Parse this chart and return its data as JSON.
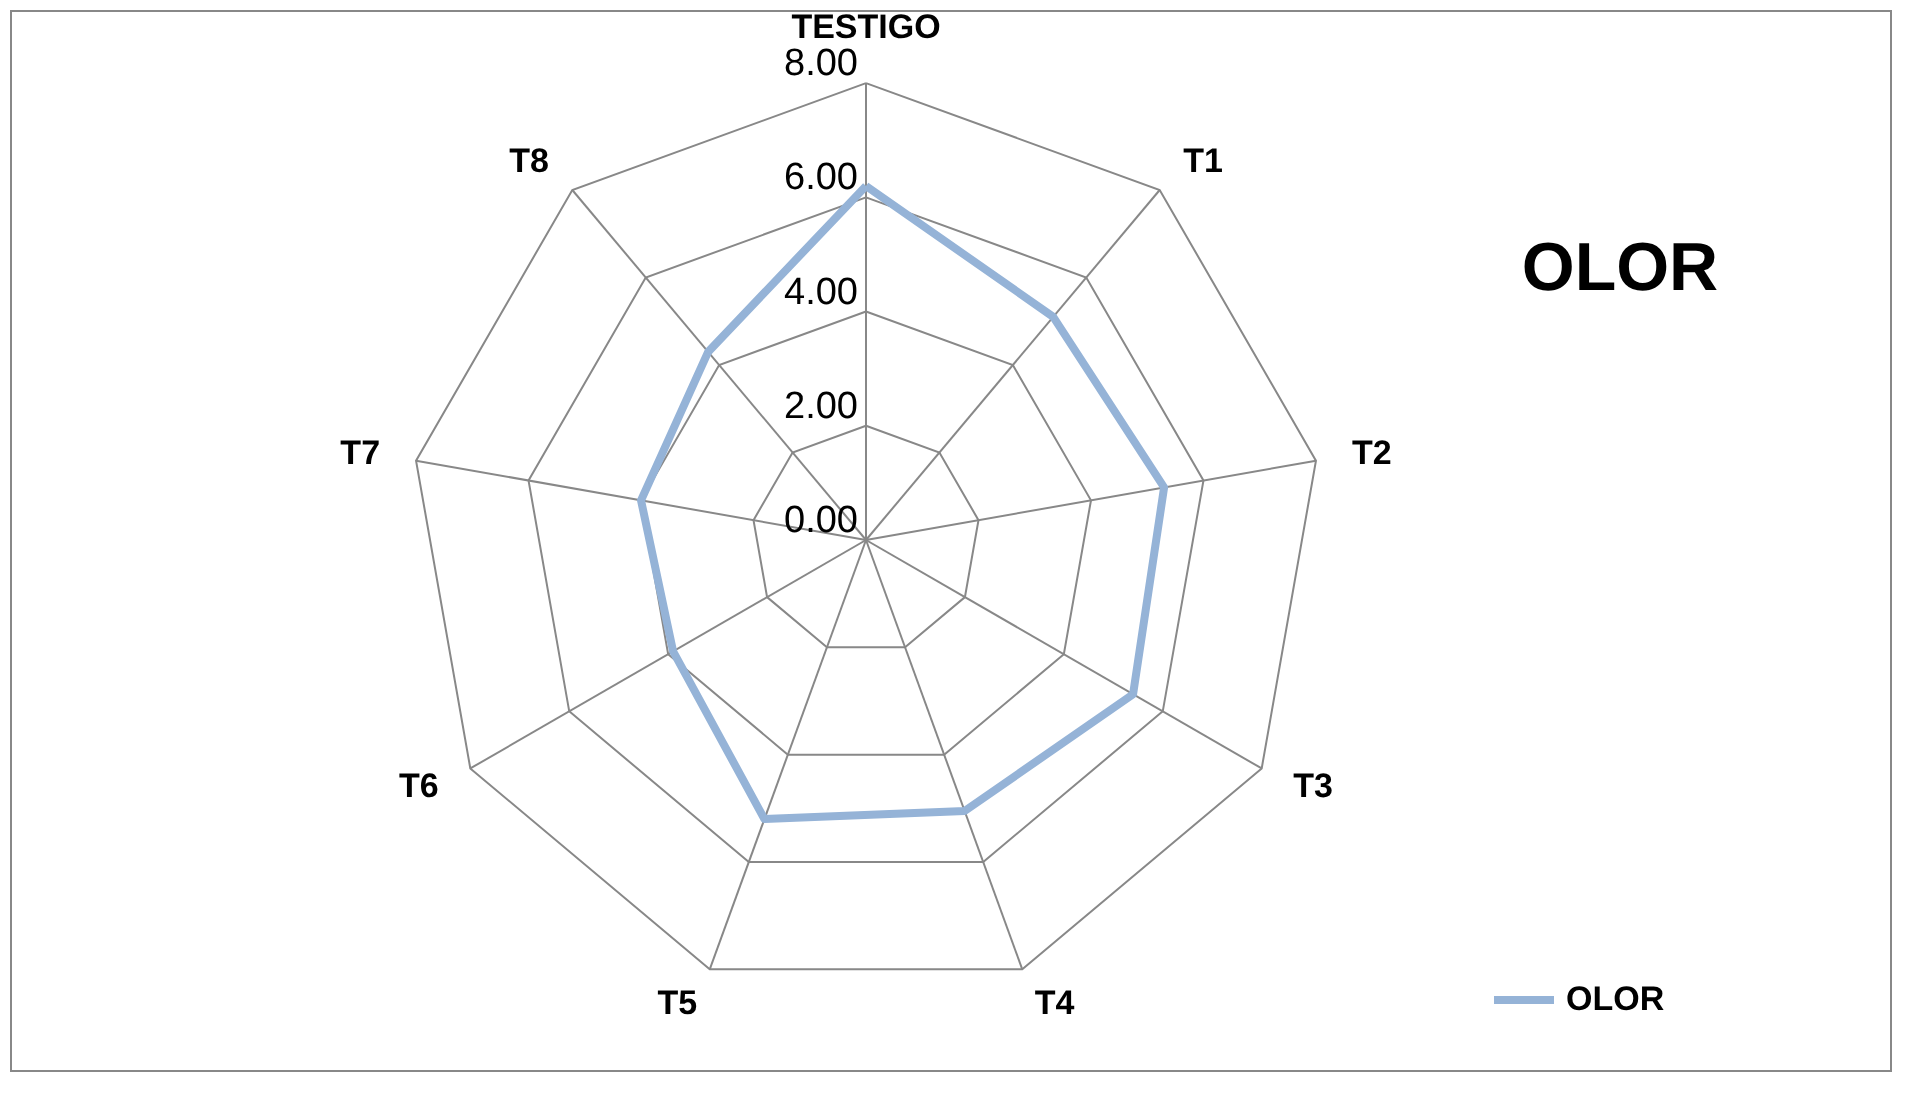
{
  "chart_data": {
    "type": "radar",
    "title": "OLOR",
    "categories": [
      "TESTIGO",
      "T1",
      "T2",
      "T3",
      "T4",
      "T5",
      "T6",
      "T7",
      "T8"
    ],
    "series": [
      {
        "name": "OLOR",
        "color": "#95b3d7",
        "values": [
          6.2,
          5.1,
          5.3,
          5.4,
          5.05,
          5.2,
          3.9,
          4.0,
          4.3
        ]
      }
    ],
    "ylim": [
      0,
      8
    ],
    "yticks": [
      {
        "value": 0,
        "label": "0.00"
      },
      {
        "value": 2,
        "label": "2.00"
      },
      {
        "value": 4,
        "label": "4.00"
      },
      {
        "value": 6,
        "label": "6.00"
      },
      {
        "value": 8,
        "label": "8.00"
      }
    ],
    "legend": "bottom right",
    "grid": true
  }
}
